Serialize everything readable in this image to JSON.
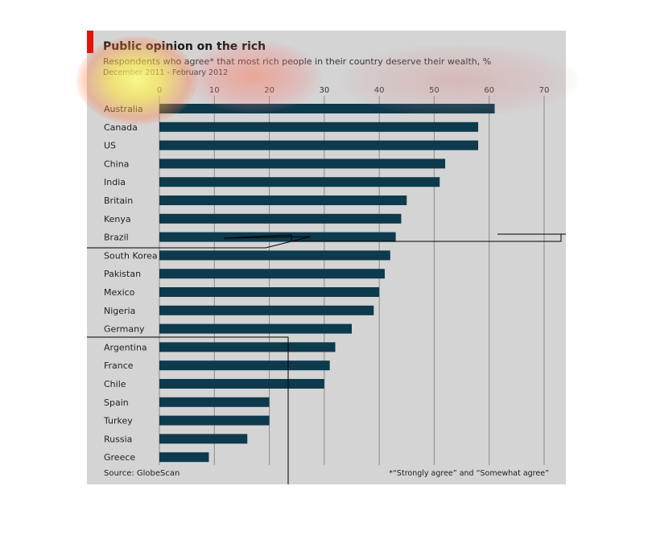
{
  "header": {
    "title": "Public opinion on the rich",
    "subtitle": "Respondents who agree* that most rich people in their country deserve their wealth, %",
    "date_range": "December 2011 - February 2012"
  },
  "footer": {
    "source": "Source: GlobeScan",
    "footnote": "*“Strongly agree” and “Somewhat agree”"
  },
  "colors": {
    "bar": "#0d3a4c",
    "panel": "#d4d4d4",
    "accent": "#e3120b",
    "grid": "#8a8a8a"
  },
  "chart_data": {
    "type": "bar",
    "orientation": "horizontal",
    "title": "Public opinion on the rich",
    "categories": [
      "Australia",
      "Canada",
      "US",
      "China",
      "India",
      "Britain",
      "Kenya",
      "Brazil",
      "South Korea",
      "Pakistan",
      "Mexico",
      "Nigeria",
      "Germany",
      "Argentina",
      "France",
      "Chile",
      "Spain",
      "Turkey",
      "Russia",
      "Greece"
    ],
    "values": [
      61,
      58,
      58,
      52,
      51,
      45,
      44,
      43,
      42,
      41,
      40,
      39,
      35,
      32,
      31,
      30,
      20,
      20,
      16,
      9
    ],
    "xlim": [
      0,
      70
    ],
    "xticks": [
      0,
      10,
      20,
      30,
      40,
      50,
      60,
      70
    ],
    "grid": true
  }
}
